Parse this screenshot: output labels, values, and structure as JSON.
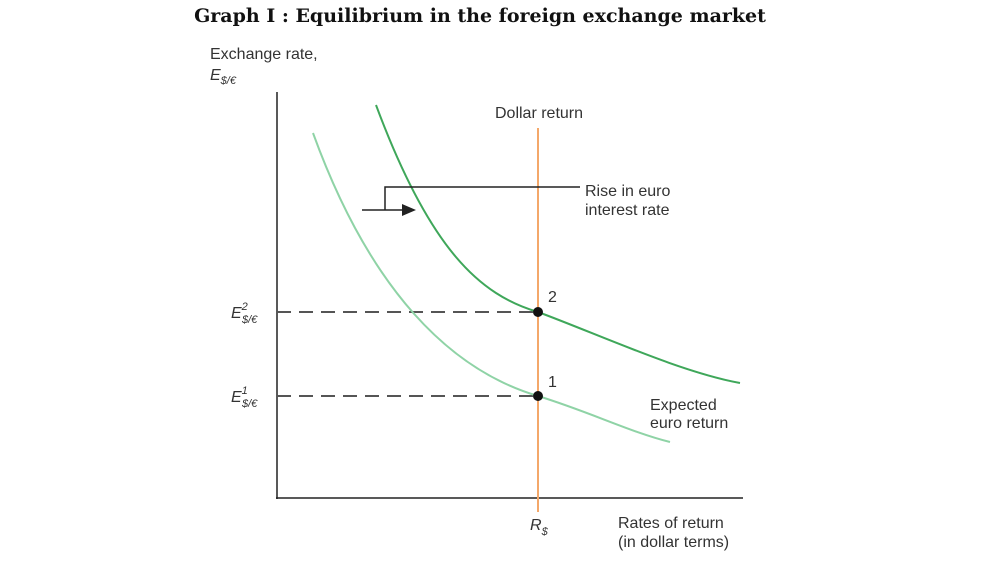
{
  "title": "Graph I : Equilibrium in the foreign exchange market",
  "y_axis": {
    "label": "Exchange rate,",
    "symbol": "E",
    "subscript": "$/€"
  },
  "x_axis": {
    "label_lines": [
      "Rates of return",
      "(in dollar terms)"
    ],
    "tick": {
      "symbol": "R",
      "subscript": "$"
    }
  },
  "y_ticks": [
    {
      "symbol": "E",
      "superscript": "2",
      "subscript": "$/€"
    },
    {
      "symbol": "E",
      "superscript": "1",
      "subscript": "$/€"
    }
  ],
  "curves": {
    "dollar_return": "Dollar return",
    "euro_return": [
      "Expected",
      "euro return"
    ]
  },
  "shift_label": [
    "Rise in euro",
    "interest rate"
  ],
  "points": [
    "2",
    "1"
  ]
}
